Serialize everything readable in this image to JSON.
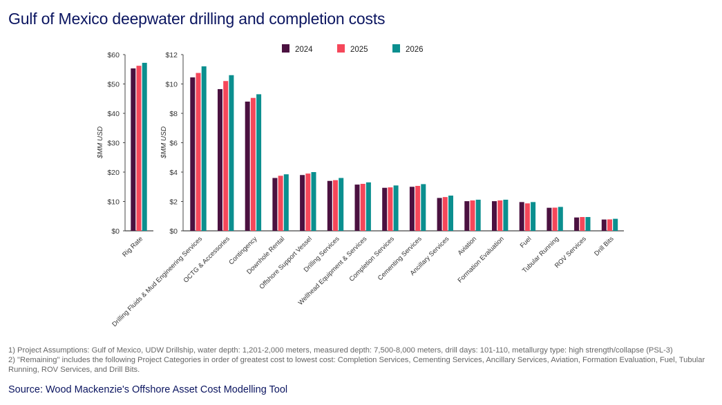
{
  "title": "Gulf of Mexico deepwater drilling and completion costs",
  "notes": [
    "1) Project Assumptions: Gulf of Mexico, UDW Drillship, water depth: 1,201-2,000 meters, measured depth: 7,500-8,000 meters, drill days: 101-110, metallurgy type: high strength/collapse (PSL-3)",
    "2) \"Remaining\" includes the following Project Categories in order of greatest cost to lowest cost: Completion Services, Cementing Services, Ancillary Services, Aviation, Formation Evaluation, Fuel, Tubular Running, ROV Services, and Drill Bits."
  ],
  "source": "Source: Wood Mackenzie's Offshore Asset Cost Modelling Tool",
  "colors": {
    "2024": "#4b1140",
    "2025": "#f5475a",
    "2026": "#0b8f8f",
    "title": "#0b1560"
  },
  "chart_data": [
    {
      "type": "bar",
      "ylabel": "$MM USD",
      "ylim": [
        0,
        60
      ],
      "yticks": [
        "$0",
        "$10",
        "$20",
        "$30",
        "$40",
        "$50",
        "$60"
      ],
      "categories": [
        "Rig Rate"
      ],
      "series": [
        {
          "name": "2024",
          "values": [
            55.3
          ]
        },
        {
          "name": "2025",
          "values": [
            56.2
          ]
        },
        {
          "name": "2026",
          "values": [
            57.2
          ]
        }
      ]
    },
    {
      "type": "bar",
      "ylabel": "$MM USD",
      "ylim": [
        0,
        12
      ],
      "yticks": [
        "$0",
        "$2",
        "$4",
        "$6",
        "$8",
        "$10",
        "$12"
      ],
      "legend": "top",
      "categories": [
        "Drilling Fluids & Mud Engineering Services",
        "OCTG & Accessories",
        "Contingency",
        "Downhole Rental",
        "Offshore Support Vessel",
        "Drilling Services",
        "Wellhead Equipment & Services",
        "Completion Services",
        "Cementing Services",
        "Ancillary Services",
        "Aviation",
        "Formation Evaluation",
        "Fuel",
        "Tubular Running",
        "ROV Services",
        "Drill Bits"
      ],
      "series": [
        {
          "name": "2024",
          "values": [
            10.45,
            9.65,
            8.8,
            3.6,
            3.8,
            3.4,
            3.15,
            2.93,
            3.0,
            2.24,
            2.02,
            2.02,
            1.96,
            1.57,
            0.91,
            0.77
          ]
        },
        {
          "name": "2025",
          "values": [
            10.75,
            10.2,
            9.05,
            3.75,
            3.9,
            3.45,
            3.2,
            2.96,
            3.06,
            2.3,
            2.07,
            2.07,
            1.87,
            1.58,
            0.94,
            0.78
          ]
        },
        {
          "name": "2026",
          "values": [
            11.2,
            10.6,
            9.3,
            3.85,
            4.0,
            3.6,
            3.3,
            3.09,
            3.18,
            2.4,
            2.12,
            2.12,
            1.96,
            1.63,
            0.94,
            0.82
          ]
        }
      ]
    }
  ]
}
